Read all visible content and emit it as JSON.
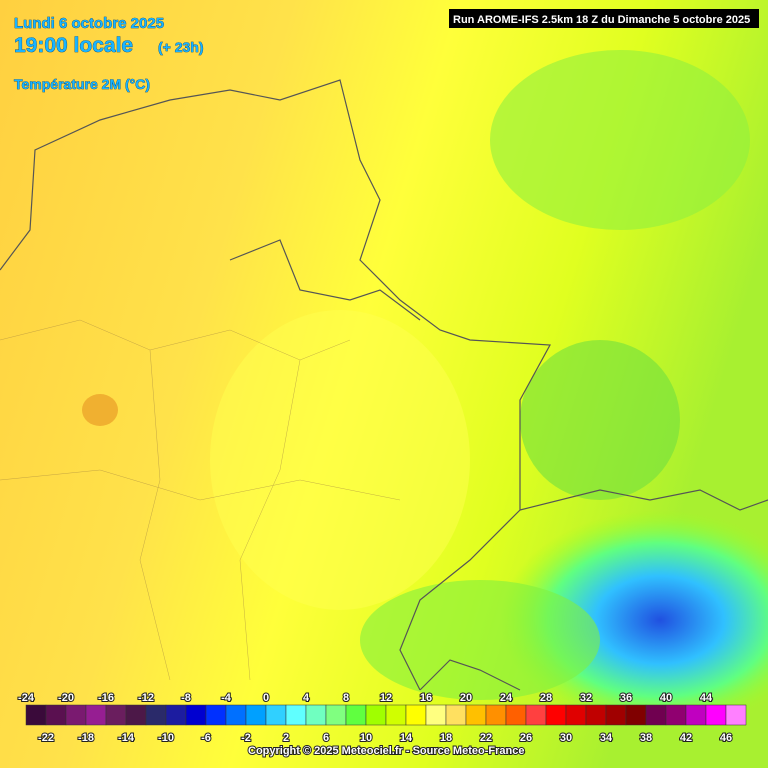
{
  "header": {
    "date": "Lundi 6 octobre 2025",
    "time": "19:00 locale",
    "lead": "(+ 23h)",
    "field": "Température 2M (°C)",
    "run": "Run AROME-IFS 2.5km 18 Z du Dimanche 5 octobre 2025"
  },
  "legend": {
    "ticks": [
      -24,
      -22,
      -20,
      -18,
      -16,
      -14,
      -12,
      -10,
      -8,
      -6,
      -4,
      -2,
      0,
      2,
      4,
      6,
      8,
      10,
      12,
      14,
      16,
      18,
      20,
      22,
      24,
      26,
      28,
      30,
      32,
      34,
      36,
      38,
      40,
      42,
      44,
      46
    ],
    "colors": [
      "#3a0a3a",
      "#5a1050",
      "#7a1a70",
      "#961e92",
      "#6a1e5e",
      "#4c1848",
      "#2a2a6a",
      "#1c1ca0",
      "#0000d0",
      "#0030ff",
      "#0070ff",
      "#00a0ff",
      "#30d0ff",
      "#60ffff",
      "#70ffc0",
      "#80ff80",
      "#60ff40",
      "#a0ff00",
      "#d0ff00",
      "#ffff00",
      "#ffff80",
      "#ffe060",
      "#ffc000",
      "#ff9000",
      "#ff6000",
      "#ff4040",
      "#ff0000",
      "#e00000",
      "#c00000",
      "#a00000",
      "#800000",
      "#700050",
      "#900070",
      "#c000c0",
      "#ff00ff",
      "#ff80ff"
    ]
  },
  "footer": {
    "copyright": "Copyright © 2025 Meteociel.fr - Source Meteo-France"
  }
}
